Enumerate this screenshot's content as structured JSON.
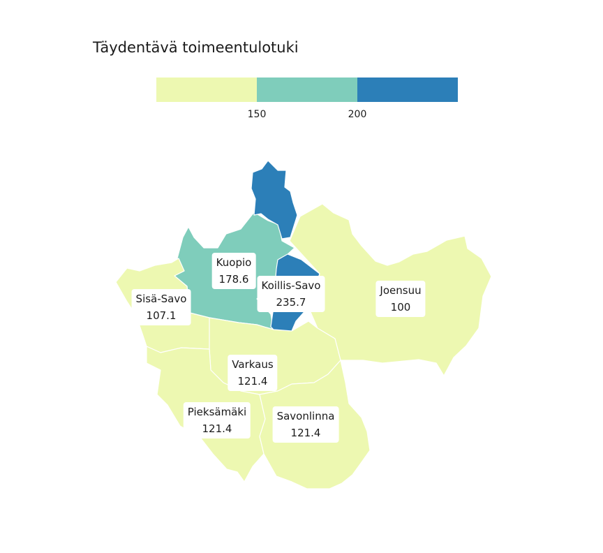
{
  "title": "Täydentävä toimeentulotuki",
  "legend": {
    "colors": [
      "#edf8b1",
      "#7fcdbb",
      "#2c7fb8"
    ],
    "breaks": [
      "150",
      "200"
    ]
  },
  "regions": [
    {
      "name": "Kuopio",
      "value": "178.6",
      "color": "#7fcdbb"
    },
    {
      "name": "Koillis-Savo",
      "value": "235.7",
      "color": "#2c7fb8"
    },
    {
      "name": "Sisä-Savo",
      "value": "107.1",
      "color": "#edf8b1"
    },
    {
      "name": "Joensuu",
      "value": "100",
      "color": "#edf8b1"
    },
    {
      "name": "Varkaus",
      "value": "121.4",
      "color": "#edf8b1"
    },
    {
      "name": "Pieksämäki",
      "value": "121.4",
      "color": "#edf8b1"
    },
    {
      "name": "Savonlinna",
      "value": "121.4",
      "color": "#edf8b1"
    }
  ]
}
